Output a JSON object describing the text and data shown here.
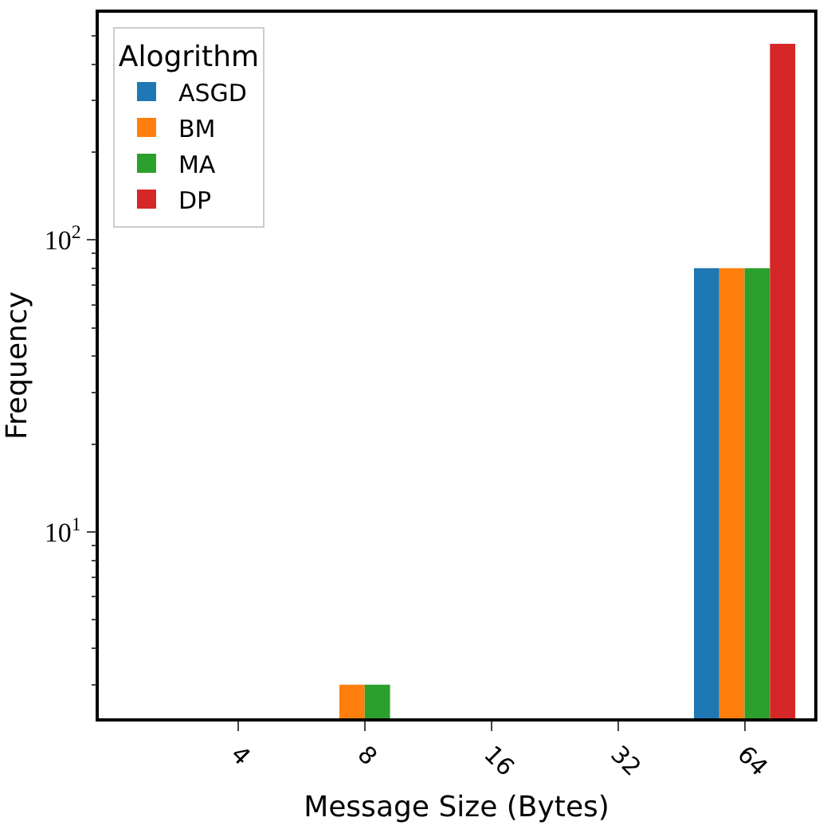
{
  "chart_data": {
    "type": "bar",
    "xlabel": "Message Size (Bytes)",
    "ylabel": "Frequency",
    "legend_title": "Alogrithm",
    "legend": "top left",
    "log": true,
    "categories": [
      "4",
      "8",
      "16",
      "32",
      "64"
    ],
    "series": [
      {
        "name": "ASGD",
        "color": "#1f77b4",
        "values": [
          null,
          null,
          null,
          null,
          80
        ]
      },
      {
        "name": "BM",
        "color": "#ff7f0e",
        "values": [
          null,
          3,
          null,
          null,
          80
        ]
      },
      {
        "name": "MA",
        "color": "#2ca02c",
        "values": [
          null,
          3,
          null,
          null,
          80
        ]
      },
      {
        "name": "DP",
        "color": "#d62728",
        "values": [
          null,
          null,
          null,
          null,
          470
        ]
      }
    ],
    "ylim": [
      2.3,
      600
    ],
    "yticks": [
      {
        "value": 3,
        "label": null
      },
      {
        "value": 4,
        "label": null
      },
      {
        "value": 5,
        "label": null
      },
      {
        "value": 6,
        "label": null
      },
      {
        "value": 7,
        "label": null
      },
      {
        "value": 8,
        "label": null
      },
      {
        "value": 9,
        "label": null
      },
      {
        "value": 10,
        "label": "10$^{1}$"
      },
      {
        "value": 20,
        "label": null
      },
      {
        "value": 30,
        "label": null
      },
      {
        "value": 40,
        "label": null
      },
      {
        "value": 50,
        "label": null
      },
      {
        "value": 60,
        "label": null
      },
      {
        "value": 70,
        "label": null
      },
      {
        "value": 80,
        "label": null
      },
      {
        "value": 90,
        "label": null
      },
      {
        "value": 100,
        "label": "10$^{2}$"
      },
      {
        "value": 200,
        "label": null
      },
      {
        "value": 300,
        "label": null
      },
      {
        "value": 400,
        "label": null
      },
      {
        "value": 500,
        "label": null
      }
    ]
  }
}
